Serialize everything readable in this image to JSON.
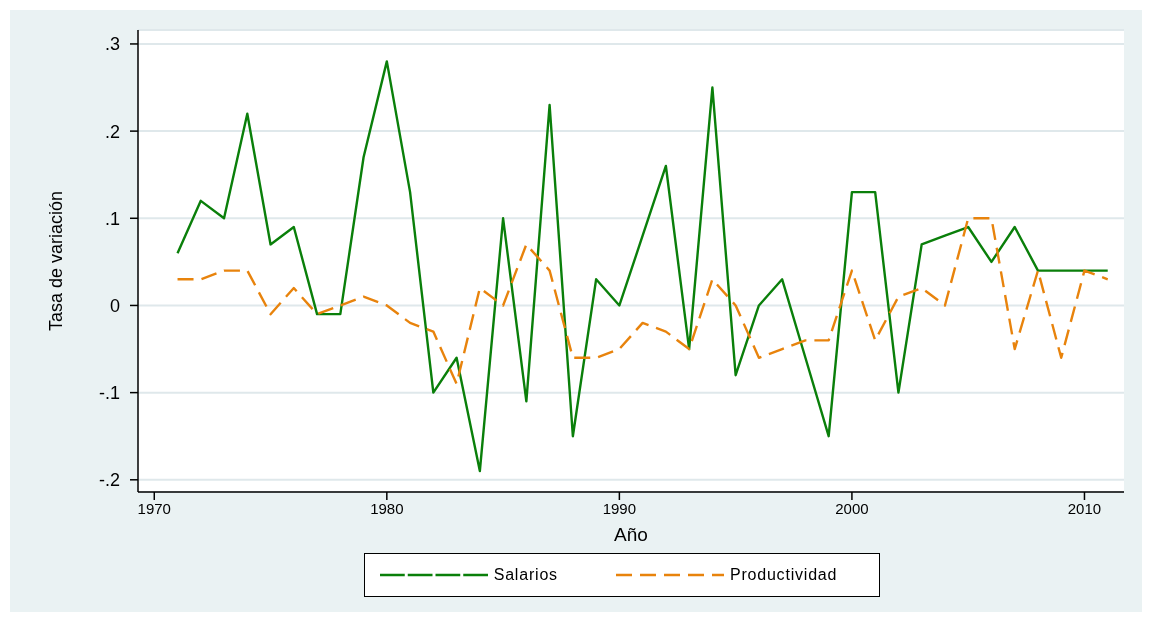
{
  "chart_data": {
    "type": "line",
    "xlabel": "Año",
    "ylabel": "Tasa de variación",
    "x": [
      1971,
      1972,
      1973,
      1974,
      1975,
      1976,
      1977,
      1978,
      1979,
      1980,
      1981,
      1982,
      1983,
      1984,
      1985,
      1986,
      1987,
      1988,
      1989,
      1990,
      1991,
      1992,
      1993,
      1994,
      1995,
      1996,
      1997,
      1998,
      1999,
      2000,
      2001,
      2002,
      2003,
      2004,
      2005,
      2006,
      2007,
      2008,
      2009,
      2010,
      2011
    ],
    "series": [
      {
        "name": "Salarios",
        "color": "#0a7f0a",
        "line_style": "solid",
        "values": [
          0.06,
          0.12,
          0.1,
          0.22,
          0.07,
          0.09,
          -0.01,
          -0.01,
          0.17,
          0.28,
          0.13,
          -0.1,
          -0.06,
          -0.19,
          0.1,
          -0.11,
          0.23,
          -0.15,
          0.03,
          0,
          0.08,
          0.16,
          -0.05,
          0.25,
          -0.08,
          0,
          0.03,
          -0.06,
          -0.15,
          0.13,
          0.13,
          -0.1,
          0.07,
          0.08,
          0.09,
          0.05,
          0.09,
          0.04,
          0.04,
          0.04,
          0.04
        ]
      },
      {
        "name": "Productividad",
        "color": "#e8830c",
        "line_style": "dashed",
        "values": [
          0.03,
          0.03,
          0.04,
          0.04,
          -0.01,
          0.02,
          -0.01,
          0,
          0.01,
          0,
          -0.02,
          -0.03,
          -0.09,
          0.02,
          0,
          0.07,
          0.04,
          -0.06,
          -0.06,
          -0.05,
          -0.02,
          -0.03,
          -0.05,
          0.03,
          0,
          -0.06,
          -0.05,
          -0.04,
          -0.04,
          0.04,
          -0.04,
          0.01,
          0.02,
          0,
          0.1,
          0.1,
          -0.05,
          0.04,
          -0.06,
          0.04,
          0.03
        ]
      }
    ],
    "xlim": [
      1969.3,
      2011.7
    ],
    "xticks": [
      1970,
      1980,
      1990,
      2000,
      2010
    ],
    "ylim": [
      -0.214,
      0.316
    ],
    "yticks": [
      {
        "value": -0.2,
        "label": "-.2"
      },
      {
        "value": -0.1,
        "label": "-.1"
      },
      0,
      {
        "value": 0.1,
        "label": ".1"
      },
      {
        "value": 0.2,
        "label": ".2"
      },
      {
        "value": 0.3,
        "label": ".3"
      }
    ],
    "grid": "y",
    "legend": "bottom"
  }
}
